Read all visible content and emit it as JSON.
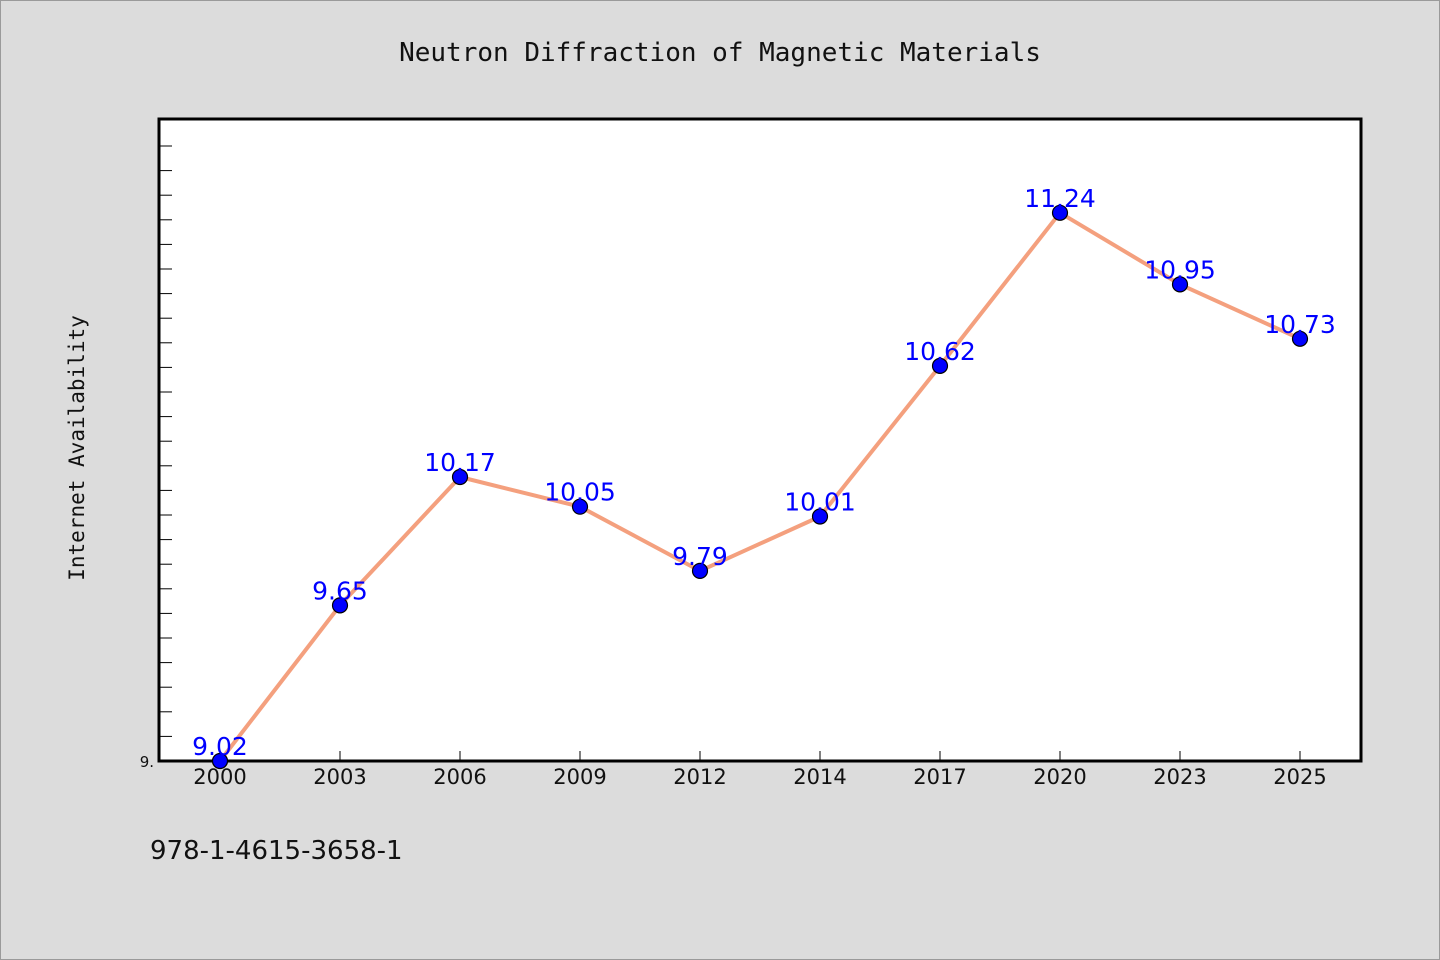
{
  "chart_data": {
    "type": "line",
    "title": "Neutron Diffraction of Magnetic Materials",
    "xlabel": "",
    "ylabel": "Internet Availability",
    "categories": [
      "2000",
      "2003",
      "2006",
      "2009",
      "2012",
      "2014",
      "2017",
      "2020",
      "2023",
      "2025"
    ],
    "series": [
      {
        "values": [
          9.02,
          9.65,
          10.17,
          10.05,
          9.79,
          10.01,
          10.62,
          11.24,
          10.95,
          10.73
        ],
        "line_color": "#f4a07e",
        "marker_color": "#0000ff"
      }
    ],
    "data_labels": [
      "9.02",
      "9.65",
      "10.17",
      "10.05",
      "9.79",
      "10.01",
      "10.62",
      "11.24",
      "10.95",
      "10.73"
    ],
    "ylim": [
      9.02,
      11.62
    ],
    "y_tick_label": "9.",
    "grid": false,
    "legend": "none"
  },
  "footer": {
    "isbn": "978-1-4615-3658-1"
  },
  "colors": {
    "background": "#dcdcdc",
    "plot_background": "#ffffff",
    "line": "#f4a07e",
    "marker": "#0000ff",
    "label": "#0000ff"
  }
}
